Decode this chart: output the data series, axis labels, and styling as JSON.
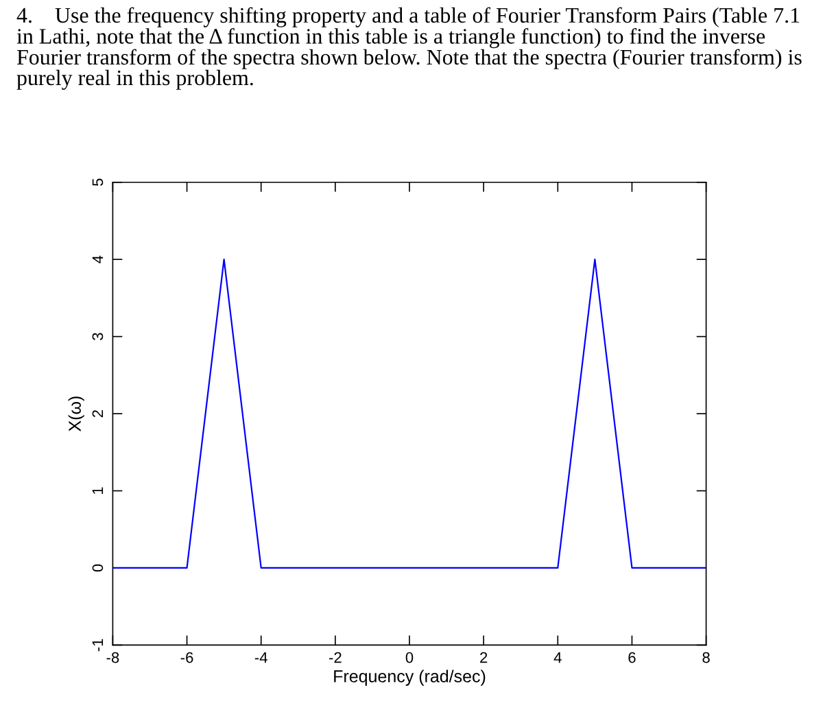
{
  "chart_data": {
    "type": "line",
    "title": "4.    Use the frequency shifting property and a table of Fourier Transform Pairs (Table 7.1 in Lathi, note that the Δ function in this table is a triangle function) to find the inverse Fourier transform of the spectra shown below. Note that the spectra (Fourier transform) is purely real in this problem.",
    "xlabel": "Frequency (rad/sec)",
    "ylabel": "X(ω)",
    "series": [
      {
        "color": "#0000ff",
        "x": [
          -8,
          -6,
          -5,
          -4,
          4,
          5,
          6,
          8
        ],
        "values": [
          0,
          0,
          4,
          0,
          0,
          4,
          0,
          0
        ]
      }
    ],
    "xlim": [
      -8,
      8
    ],
    "ylim": [
      -1,
      5
    ],
    "xticks": [
      -8,
      -6,
      -4,
      -2,
      0,
      2,
      4,
      6,
      8
    ],
    "yticks": [
      -1,
      0,
      1,
      2,
      3,
      4,
      5
    ],
    "grid": false,
    "legend": false,
    "marker": "none",
    "line_style": "solid"
  }
}
